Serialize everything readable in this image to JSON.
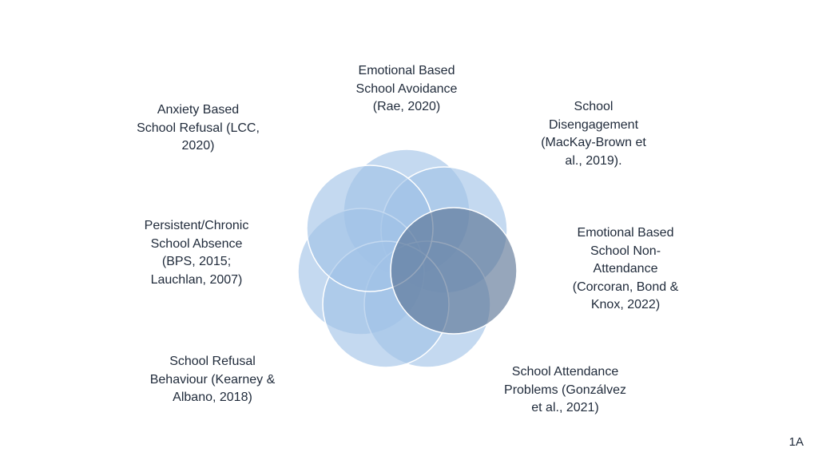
{
  "slide": {
    "labels": {
      "top": "Emotional Based\nSchool Avoidance\n(Rae, 2020)",
      "top_left": "Anxiety Based\nSchool Refusal (LCC,\n2020)",
      "top_right": "School\nDisengagement\n(MacKay-Brown et\nal., 2019).",
      "mid_left": "Persistent/Chronic\nSchool Absence\n(BPS, 2015;\nLauchlan, 2007)",
      "mid_right": "Emotional Based\nSchool Non-\nAttendance\n(Corcoran, Bond &\nKnox, 2022)",
      "bottom_left": "School Refusal\nBehaviour (Kearney &\nAlbano, 2018)",
      "bottom_right": "School Attendance\nProblems (Gonzálvez\net al., 2021)"
    },
    "page_number": "1A"
  },
  "colors": {
    "circle_fill": "#9fc1e6",
    "highlight_fill": "#566f92",
    "stroke": "#ffffff"
  }
}
